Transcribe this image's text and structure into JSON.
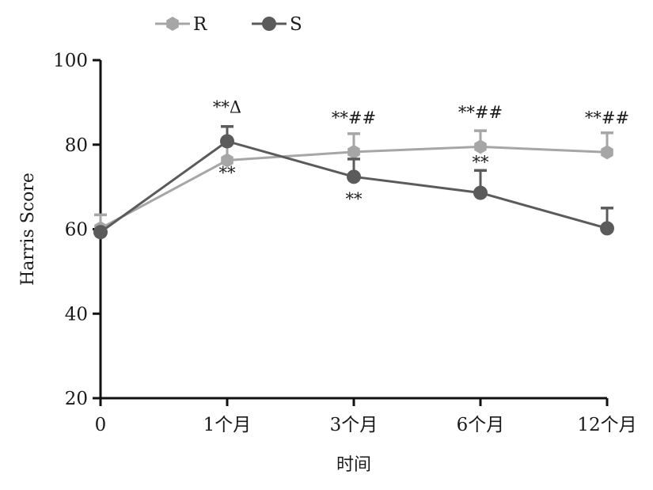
{
  "chart_data": {
    "type": "line",
    "xlabel": "时间",
    "ylabel": "Harris Score",
    "categories": [
      "0",
      "1个月",
      "3个月",
      "6个月",
      "12个月"
    ],
    "ylim": [
      20,
      100
    ],
    "yticks": [
      20,
      40,
      60,
      80,
      100
    ],
    "legend_position": "top-left",
    "grid": false,
    "series": [
      {
        "name": "R",
        "values": [
          60.2,
          76.3,
          78.3,
          79.5,
          78.2
        ],
        "error": [
          3.2,
          4.0,
          4.3,
          3.8,
          4.6
        ],
        "color": "#a6a6a6",
        "marker": "hexagon"
      },
      {
        "name": "S",
        "values": [
          59.3,
          80.8,
          72.4,
          68.6,
          60.2
        ],
        "error": [
          0,
          3.5,
          4.2,
          5.3,
          4.8
        ],
        "color": "#5b5b5b",
        "marker": "circle"
      }
    ],
    "annotations": [
      {
        "text": "**Δ",
        "category": 1,
        "value": 87.5
      },
      {
        "text": "**",
        "category": 1,
        "value": 72.0
      },
      {
        "text": "**##",
        "category": 2,
        "value": 85.0
      },
      {
        "text": "**",
        "category": 2,
        "value": 65.8
      },
      {
        "text": "**##",
        "category": 3,
        "value": 86.3
      },
      {
        "text": "**",
        "category": 3,
        "value": 74.5
      },
      {
        "text": "**##",
        "category": 4,
        "value": 85.0
      }
    ]
  }
}
